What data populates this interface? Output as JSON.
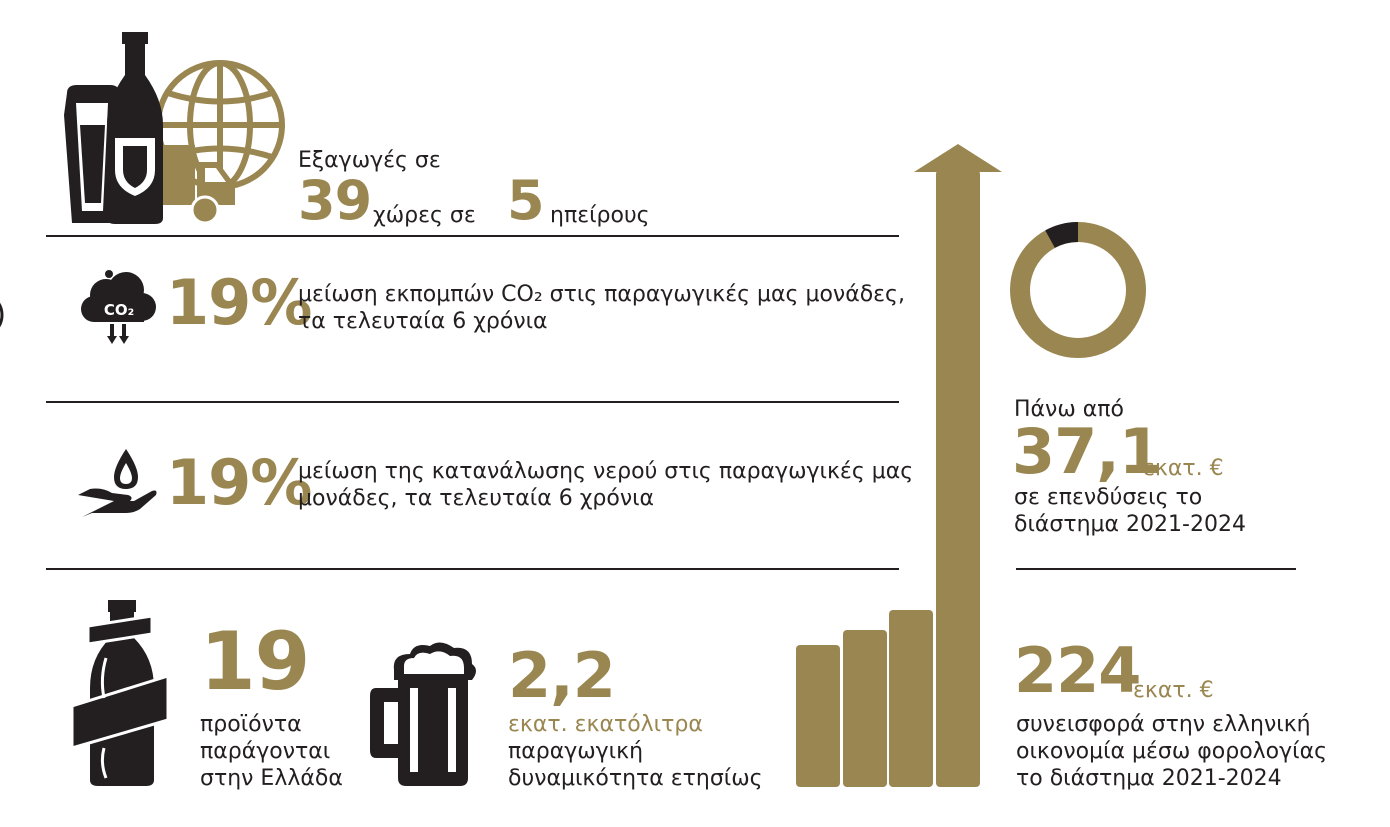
{
  "colors": {
    "gold": "#9a8650",
    "dark": "#231f20",
    "background": "#ffffff"
  },
  "exports": {
    "prefix": "Εξαγωγές σε",
    "countries_value": "39",
    "countries_label": "χώρες σε",
    "continents_value": "5",
    "continents_label": "ηπείρους",
    "icons": [
      "beer-glass-icon",
      "beer-bottle-icon",
      "globe-icon",
      "delivery-truck-icon"
    ]
  },
  "co2": {
    "value": "19%",
    "line1": "μείωση εκπομπών CO₂ στις παραγωγικές μας μονάδες,",
    "line2": "τα τελευταία 6 χρόνια",
    "icon_label": "CO₂"
  },
  "water": {
    "value": "19%",
    "line1": "μείωση της κατανάλωσης νερού στις παραγωγικές μας",
    "line2": "μονάδες, τα τελευταία 6 χρόνια"
  },
  "products": {
    "value": "19",
    "line1": "προϊόντα",
    "line2": "παράγονται",
    "line3": "στην Ελλάδα"
  },
  "capacity": {
    "value": "2,2",
    "unit": "εκατ. εκατόλιτρα",
    "line1": "παραγωγική",
    "line2": "δυναμικότητα ετησίως"
  },
  "investment": {
    "prefix": "Πάνω από",
    "value": "37,1",
    "unit": "εκατ. €",
    "line1": "σε επενδύσεις το",
    "line2": "διάστημα 2021-2024",
    "donut_dark_fraction": 0.08
  },
  "tax": {
    "value": "224",
    "unit": "εκατ. €",
    "line1": "συνεισφορά στην ελληνική",
    "line2": "οικονομία μέσω φορολογίας",
    "line3": "το διάστημα 2021-2024"
  }
}
